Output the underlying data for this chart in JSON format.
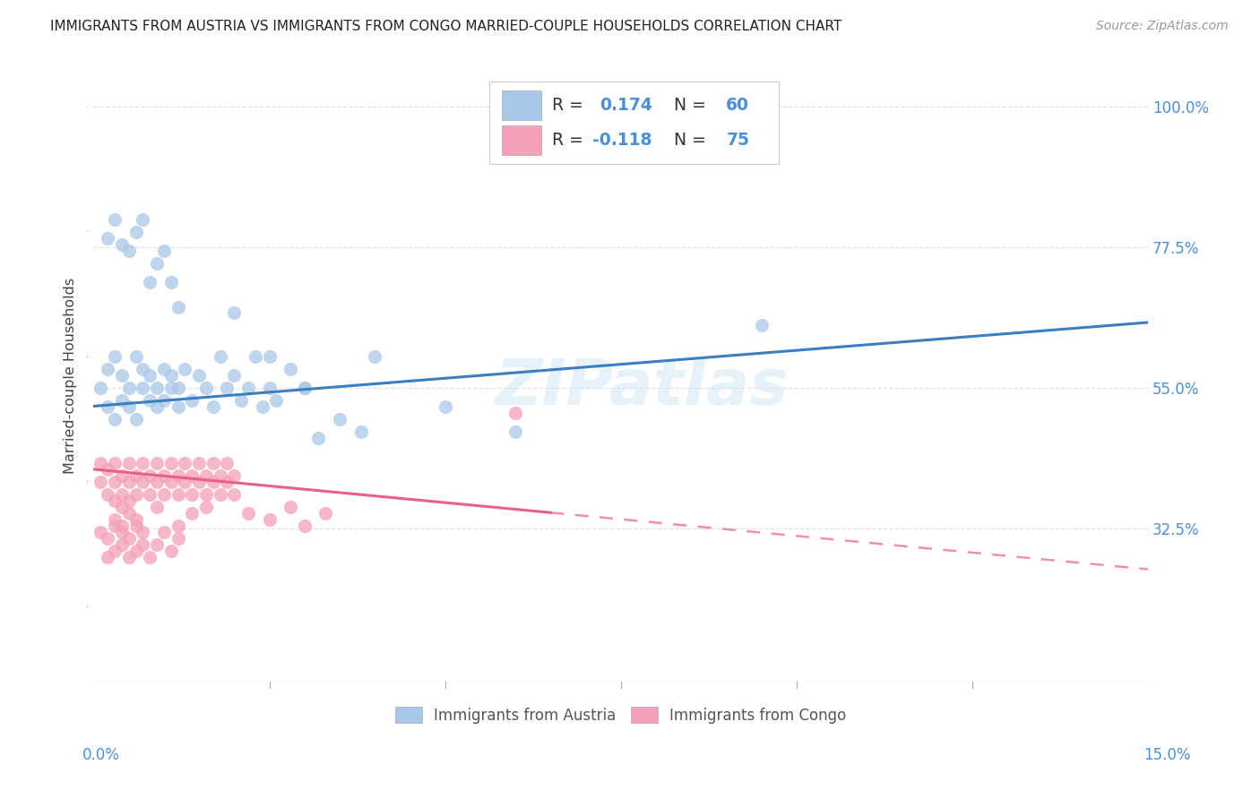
{
  "title": "IMMIGRANTS FROM AUSTRIA VS IMMIGRANTS FROM CONGO MARRIED-COUPLE HOUSEHOLDS CORRELATION CHART",
  "source": "Source: ZipAtlas.com",
  "ylabel": "Married-couple Households",
  "xmin": 0.0,
  "xmax": 0.15,
  "ymin": 0.08,
  "ymax": 1.06,
  "austria_color": "#a8c8e8",
  "congo_color": "#f4a0b8",
  "austria_line_color": "#3a7fc1",
  "congo_line_color": "#e8608a",
  "tick_color": "#4a90d9",
  "grid_color": "#e0e0e0",
  "background_color": "#ffffff",
  "watermark": "ZIPatlas",
  "austria_R": 0.174,
  "austria_N": 60,
  "congo_R": -0.118,
  "congo_N": 75,
  "bottom_legend_austria": "Immigrants from Austria",
  "bottom_legend_congo": "Immigrants from Congo",
  "austria_x": [
    0.001,
    0.002,
    0.002,
    0.003,
    0.003,
    0.004,
    0.004,
    0.005,
    0.005,
    0.006,
    0.006,
    0.007,
    0.007,
    0.008,
    0.008,
    0.009,
    0.009,
    0.01,
    0.01,
    0.011,
    0.011,
    0.012,
    0.012,
    0.013,
    0.014,
    0.015,
    0.016,
    0.017,
    0.018,
    0.019,
    0.02,
    0.021,
    0.022,
    0.023,
    0.024,
    0.025,
    0.026,
    0.028,
    0.03,
    0.032,
    0.035,
    0.038,
    0.002,
    0.003,
    0.004,
    0.005,
    0.006,
    0.007,
    0.008,
    0.009,
    0.01,
    0.011,
    0.012,
    0.04,
    0.05,
    0.06,
    0.03,
    0.025,
    0.02,
    0.095
  ],
  "austria_y": [
    0.55,
    0.52,
    0.58,
    0.5,
    0.6,
    0.53,
    0.57,
    0.52,
    0.55,
    0.5,
    0.6,
    0.55,
    0.58,
    0.53,
    0.57,
    0.52,
    0.55,
    0.53,
    0.58,
    0.55,
    0.57,
    0.52,
    0.55,
    0.58,
    0.53,
    0.57,
    0.55,
    0.52,
    0.6,
    0.55,
    0.57,
    0.53,
    0.55,
    0.6,
    0.52,
    0.55,
    0.53,
    0.58,
    0.55,
    0.47,
    0.5,
    0.48,
    0.79,
    0.82,
    0.78,
    0.77,
    0.8,
    0.82,
    0.72,
    0.75,
    0.77,
    0.72,
    0.68,
    0.6,
    0.52,
    0.48,
    0.55,
    0.6,
    0.67,
    0.65
  ],
  "congo_x": [
    0.001,
    0.001,
    0.002,
    0.002,
    0.003,
    0.003,
    0.004,
    0.004,
    0.005,
    0.005,
    0.006,
    0.006,
    0.007,
    0.007,
    0.008,
    0.008,
    0.009,
    0.009,
    0.01,
    0.01,
    0.011,
    0.011,
    0.012,
    0.012,
    0.013,
    0.013,
    0.014,
    0.014,
    0.015,
    0.015,
    0.016,
    0.016,
    0.017,
    0.017,
    0.018,
    0.018,
    0.019,
    0.019,
    0.02,
    0.02,
    0.001,
    0.002,
    0.002,
    0.003,
    0.003,
    0.004,
    0.004,
    0.005,
    0.005,
    0.006,
    0.006,
    0.007,
    0.007,
    0.008,
    0.009,
    0.01,
    0.011,
    0.012,
    0.022,
    0.025,
    0.028,
    0.03,
    0.033,
    0.003,
    0.003,
    0.004,
    0.004,
    0.005,
    0.005,
    0.006,
    0.009,
    0.012,
    0.014,
    0.016,
    0.06
  ],
  "congo_y": [
    0.4,
    0.43,
    0.38,
    0.42,
    0.4,
    0.43,
    0.38,
    0.41,
    0.4,
    0.43,
    0.38,
    0.41,
    0.4,
    0.43,
    0.38,
    0.41,
    0.4,
    0.43,
    0.38,
    0.41,
    0.4,
    0.43,
    0.38,
    0.41,
    0.4,
    0.43,
    0.38,
    0.41,
    0.4,
    0.43,
    0.38,
    0.41,
    0.4,
    0.43,
    0.38,
    0.41,
    0.4,
    0.43,
    0.38,
    0.41,
    0.32,
    0.28,
    0.31,
    0.29,
    0.33,
    0.3,
    0.32,
    0.28,
    0.31,
    0.29,
    0.33,
    0.3,
    0.32,
    0.28,
    0.3,
    0.32,
    0.29,
    0.31,
    0.35,
    0.34,
    0.36,
    0.33,
    0.35,
    0.37,
    0.34,
    0.36,
    0.33,
    0.35,
    0.37,
    0.34,
    0.36,
    0.33,
    0.35,
    0.36,
    0.51
  ],
  "ytick_vals": [
    0.325,
    0.55,
    0.775,
    1.0
  ],
  "ytick_labels": [
    "32.5%",
    "55.0%",
    "77.5%",
    "100.0%"
  ],
  "xtick_vals": [
    0.0,
    0.025,
    0.05,
    0.075,
    0.1,
    0.125,
    0.15
  ]
}
